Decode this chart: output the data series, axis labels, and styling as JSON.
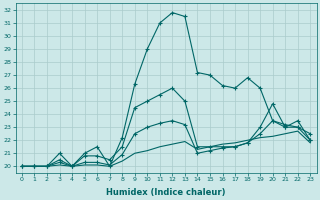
{
  "bg_color": "#cce8e8",
  "grid_color": "#aacccc",
  "line_color": "#006666",
  "xlabel": "Humidex (Indice chaleur)",
  "ylim": [
    19.5,
    32.5
  ],
  "xlim": [
    -0.5,
    23.5
  ],
  "yticks": [
    20,
    21,
    22,
    23,
    24,
    25,
    26,
    27,
    28,
    29,
    30,
    31,
    32
  ],
  "xticks": [
    0,
    1,
    2,
    3,
    4,
    5,
    6,
    7,
    8,
    9,
    10,
    11,
    12,
    13,
    14,
    15,
    16,
    17,
    18,
    19,
    20,
    21,
    22,
    23
  ],
  "s1_x": [
    0,
    1,
    2,
    3,
    4,
    5,
    6,
    7,
    8,
    9,
    10,
    11,
    12,
    13,
    14,
    15,
    16,
    17,
    18,
    19,
    20,
    21,
    22,
    23
  ],
  "s1_y": [
    20.0,
    20.0,
    20.0,
    21.0,
    20.0,
    21.0,
    21.5,
    20.0,
    22.2,
    26.3,
    29.0,
    31.0,
    31.8,
    31.5,
    27.2,
    27.0,
    26.2,
    26.0,
    26.8,
    26.0,
    23.5,
    23.0,
    23.5,
    22.0
  ],
  "s2_x": [
    0,
    1,
    2,
    3,
    4,
    5,
    6,
    7,
    8,
    9,
    10,
    11,
    12,
    13,
    14,
    15,
    16,
    17,
    18,
    19,
    20,
    21,
    22,
    23
  ],
  "s2_y": [
    20.0,
    20.0,
    20.0,
    20.5,
    20.0,
    20.8,
    20.8,
    20.5,
    21.5,
    24.5,
    25.0,
    25.5,
    26.0,
    25.0,
    21.5,
    21.5,
    21.5,
    21.5,
    21.8,
    23.0,
    24.8,
    23.0,
    23.0,
    22.0
  ],
  "s3_x": [
    0,
    1,
    2,
    3,
    4,
    5,
    6,
    7,
    8,
    9,
    10,
    11,
    12,
    13,
    14,
    15,
    16,
    17,
    18,
    19,
    20,
    21,
    22,
    23
  ],
  "s3_y": [
    20.0,
    20.0,
    20.0,
    20.3,
    20.0,
    20.3,
    20.3,
    20.1,
    20.9,
    22.5,
    23.0,
    23.3,
    23.5,
    23.2,
    21.0,
    21.2,
    21.4,
    21.5,
    21.8,
    22.5,
    23.5,
    23.2,
    23.0,
    22.5
  ],
  "s4_x": [
    0,
    1,
    2,
    3,
    4,
    5,
    6,
    7,
    8,
    9,
    10,
    11,
    12,
    13,
    14,
    15,
    16,
    17,
    18,
    19,
    20,
    21,
    22,
    23
  ],
  "s4_y": [
    20.0,
    20.0,
    20.0,
    20.1,
    20.0,
    20.1,
    20.1,
    20.0,
    20.4,
    21.0,
    21.2,
    21.5,
    21.7,
    21.9,
    21.3,
    21.5,
    21.7,
    21.8,
    22.0,
    22.2,
    22.3,
    22.5,
    22.7,
    21.8
  ]
}
